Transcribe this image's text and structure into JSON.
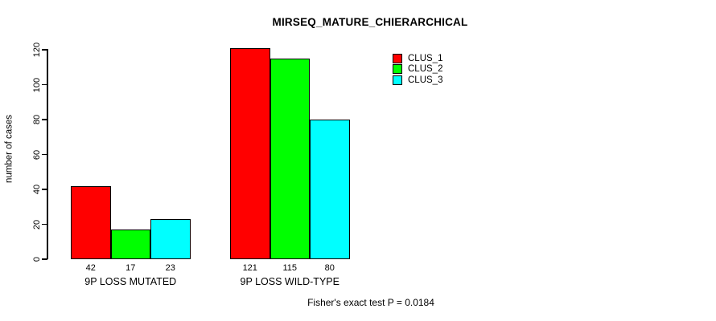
{
  "chart_data": {
    "type": "bar",
    "title": "MIRSEQ_MATURE_CHIERARCHICAL",
    "categories": [
      "9P LOSS MUTATED",
      "9P LOSS WILD-TYPE"
    ],
    "series": [
      {
        "name": "CLUS_1",
        "color": "#ff0000",
        "values": [
          42,
          121
        ]
      },
      {
        "name": "CLUS_2",
        "color": "#00ff00",
        "values": [
          17,
          115
        ]
      },
      {
        "name": "CLUS_3",
        "color": "#00ffff",
        "values": [
          23,
          80
        ]
      }
    ],
    "bar_value_labels": [
      [
        42,
        17,
        23
      ],
      [
        121,
        115,
        80
      ]
    ],
    "xlabel": "",
    "ylabel": "number of cases",
    "ylim": [
      0,
      120
    ],
    "yticks": [
      0,
      20,
      40,
      60,
      80,
      100,
      120
    ],
    "grid": false,
    "legend_position": "right",
    "bar_border_color": "#000000",
    "annotation": "Fisher's exact test P = 0.0184"
  }
}
